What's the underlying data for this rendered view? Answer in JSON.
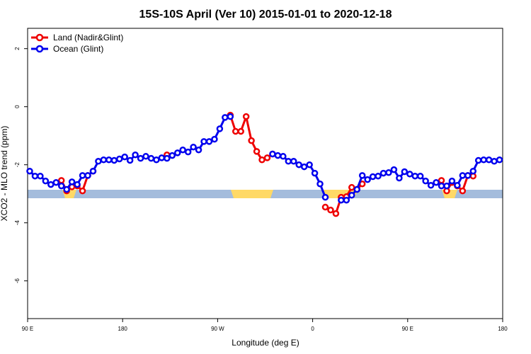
{
  "chart_data": {
    "type": "line",
    "title": "15S-10S April (Ver 10)   2015-01-01 to 2020-12-18",
    "xlabel": "Longitude (deg E)",
    "ylabel": "XCO2 - MLO trend (ppm)",
    "xlim": [
      90,
      540
    ],
    "ylim": [
      -7.3,
      2.7
    ],
    "xticks": [
      {
        "value": 90,
        "label": "90 E"
      },
      180,
      {
        "value": 270,
        "label": "90 W"
      },
      {
        "value": 360,
        "label": "0"
      },
      {
        "value": 450,
        "label": "90 E"
      },
      {
        "value": 540,
        "label": "180"
      }
    ],
    "yticks": [
      2,
      0,
      -2,
      -4,
      -6
    ],
    "legend": "top-left",
    "x": [
      92,
      97,
      102,
      107,
      112,
      117,
      122,
      127,
      132,
      137,
      142,
      147,
      152,
      157,
      162,
      167,
      172,
      177,
      182,
      187,
      192,
      197,
      202,
      207,
      212,
      217,
      222,
      227,
      232,
      237,
      242,
      247,
      252,
      257,
      262,
      267,
      272,
      277,
      282,
      287,
      292,
      297,
      302,
      307,
      312,
      317,
      322,
      327,
      332,
      337,
      342,
      347,
      352,
      357,
      362,
      367,
      372,
      377,
      382,
      387,
      392,
      397,
      402,
      407,
      412,
      417,
      422,
      427,
      432,
      437,
      442,
      447,
      452,
      457,
      462,
      467,
      472,
      477,
      482,
      487,
      492,
      497,
      502,
      507,
      512,
      517,
      522,
      527,
      532,
      537
    ],
    "series": [
      {
        "name": "Land (Nadir&Glint)",
        "color": "#ee0000",
        "values": [
          null,
          null,
          null,
          null,
          null,
          null,
          -2.54,
          -2.9,
          -2.76,
          -2.73,
          -2.9,
          -2.37,
          -2.22,
          null,
          null,
          null,
          null,
          null,
          null,
          null,
          null,
          null,
          null,
          null,
          null,
          null,
          -1.66,
          null,
          null,
          null,
          null,
          null,
          null,
          null,
          null,
          null,
          null,
          null,
          -0.29,
          -0.85,
          -0.85,
          -0.34,
          -1.17,
          -1.54,
          -1.83,
          -1.76,
          -1.63,
          null,
          null,
          null,
          null,
          null,
          null,
          null,
          null,
          null,
          -3.46,
          -3.56,
          -3.68,
          -3.12,
          -3.1,
          -2.78,
          -2.85,
          -2.66,
          null,
          null,
          null,
          null,
          null,
          null,
          null,
          null,
          null,
          null,
          null,
          null,
          null,
          null,
          -2.54,
          -2.9,
          -2.61,
          -2.73,
          -2.9,
          -2.37,
          -2.39,
          null,
          null,
          null,
          null,
          null
        ]
      },
      {
        "name": "Ocean (Glint)",
        "color": "#0000ee",
        "values": [
          -2.22,
          -2.39,
          -2.39,
          -2.56,
          -2.68,
          -2.61,
          -2.73,
          -2.85,
          -2.59,
          -2.68,
          -2.37,
          -2.37,
          -2.22,
          -1.88,
          -1.83,
          -1.83,
          -1.85,
          -1.8,
          -1.73,
          -1.85,
          -1.66,
          -1.78,
          -1.71,
          -1.78,
          -1.83,
          -1.76,
          -1.78,
          -1.68,
          -1.59,
          -1.49,
          -1.56,
          -1.39,
          -1.49,
          -1.2,
          -1.2,
          -1.12,
          -0.76,
          -0.37,
          -0.34,
          null,
          null,
          null,
          null,
          null,
          null,
          null,
          -1.63,
          -1.68,
          -1.71,
          -1.88,
          -1.88,
          -2.0,
          -2.07,
          -2.0,
          -2.29,
          -2.66,
          -3.12,
          null,
          null,
          -3.22,
          -3.22,
          -3.05,
          -2.85,
          -2.37,
          -2.51,
          -2.41,
          -2.39,
          -2.29,
          -2.27,
          -2.17,
          -2.46,
          -2.24,
          -2.32,
          -2.39,
          -2.39,
          -2.56,
          -2.71,
          -2.61,
          -2.73,
          -2.73,
          -2.56,
          -2.71,
          -2.37,
          -2.37,
          -2.22,
          -1.85,
          -1.83,
          -1.83,
          -1.88,
          -1.83
        ]
      }
    ]
  }
}
